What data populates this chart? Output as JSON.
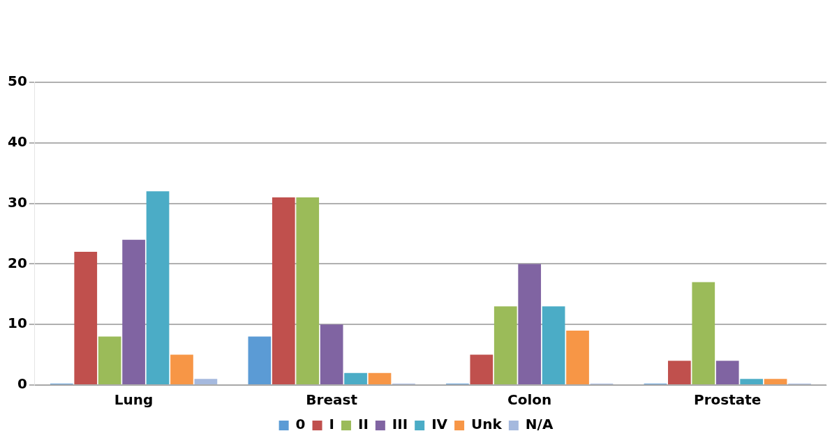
{
  "chart_data": {
    "type": "bar",
    "categories": [
      "Lung",
      "Breast",
      "Colon",
      "Prostate"
    ],
    "series": [
      {
        "name": "0",
        "color": "#5b9bd5",
        "values": [
          0,
          8,
          0,
          0
        ]
      },
      {
        "name": "I",
        "color": "#c0504d",
        "values": [
          22,
          31,
          5,
          4
        ]
      },
      {
        "name": "II",
        "color": "#9bbb59",
        "values": [
          8,
          31,
          13,
          17
        ]
      },
      {
        "name": "III",
        "color": "#8064a2",
        "values": [
          24,
          10,
          20,
          4
        ]
      },
      {
        "name": "IV",
        "color": "#4bacc6",
        "values": [
          32,
          2,
          13,
          1
        ]
      },
      {
        "name": "Unk",
        "color": "#f79646",
        "values": [
          5,
          2,
          9,
          1
        ]
      },
      {
        "name": "N/A",
        "color": "#a5b9de",
        "values": [
          1,
          0,
          0,
          0
        ]
      }
    ],
    "ylim": [
      0,
      50
    ],
    "yticks": [
      0,
      10,
      20,
      30,
      40,
      50
    ],
    "grid": "y",
    "legend": "bottom"
  }
}
